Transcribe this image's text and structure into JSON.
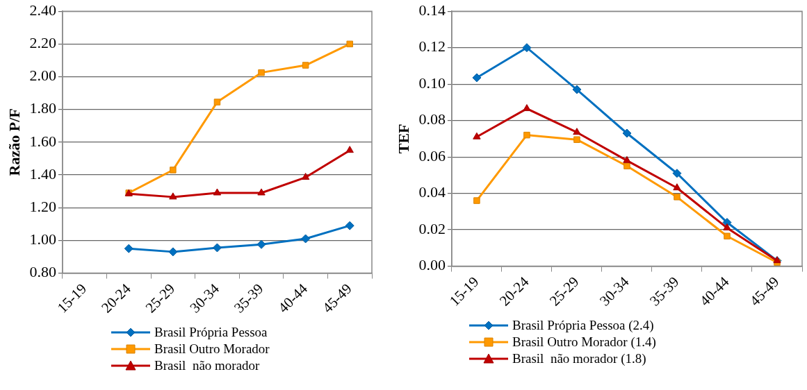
{
  "chart_data": [
    {
      "type": "line",
      "ylabel": "Razão P/F",
      "categories": [
        "15-19",
        "20-24",
        "25-29",
        "30-34",
        "35-39",
        "40-44",
        "45-49"
      ],
      "series": [
        {
          "name": "Brasil Própria Pessoa",
          "color": "#0070c0",
          "marker": "diamond",
          "values": [
            null,
            0.95,
            0.93,
            0.955,
            0.975,
            1.01,
            1.09
          ]
        },
        {
          "name": "Brasil Outro Morador",
          "color": "#ff9900",
          "marker": "square",
          "values": [
            null,
            1.29,
            1.43,
            1.845,
            2.025,
            2.07,
            2.2
          ]
        },
        {
          "name": "Brasil  não morador",
          "color": "#c00000",
          "marker": "triangle",
          "values": [
            null,
            1.285,
            1.265,
            1.29,
            1.29,
            1.385,
            1.55
          ]
        }
      ],
      "ylim": [
        0.8,
        2.4
      ],
      "yticks": [
        {
          "value": 0.8,
          "label": "0.80"
        },
        {
          "value": 1.0,
          "label": "1.00"
        },
        {
          "value": 1.2,
          "label": "1.20"
        },
        {
          "value": 1.4,
          "label": "1.40"
        },
        {
          "value": 1.6,
          "label": "1.60"
        },
        {
          "value": 1.8,
          "label": "1.80"
        },
        {
          "value": 2.0,
          "label": "2.00"
        },
        {
          "value": 2.2,
          "label": "2.20"
        },
        {
          "value": 2.4,
          "label": "2.40"
        }
      ],
      "grid": "y",
      "legend": "bottom",
      "line_style": "solid"
    },
    {
      "type": "line",
      "ylabel": "TEF",
      "categories": [
        "15-19",
        "20-24",
        "25-29",
        "30-34",
        "35-39",
        "40-44",
        "45-49"
      ],
      "series": [
        {
          "name": "Brasil Própria Pessoa (2.4)",
          "color": "#0070c0",
          "marker": "diamond",
          "values": [
            0.1035,
            0.12,
            0.097,
            0.073,
            0.051,
            0.024,
            0.003
          ]
        },
        {
          "name": "Brasil Outro Morador (1.4)",
          "color": "#ff9900",
          "marker": "square",
          "values": [
            0.036,
            0.072,
            0.0695,
            0.055,
            0.038,
            0.0165,
            0.002
          ]
        },
        {
          "name": "Brasil  não morador (1.8)",
          "color": "#c00000",
          "marker": "triangle",
          "values": [
            0.071,
            0.0865,
            0.0735,
            0.058,
            0.043,
            0.021,
            0.003
          ]
        }
      ],
      "ylim": [
        0,
        0.14
      ],
      "yticks": [
        {
          "value": 0,
          "label": "0.00"
        },
        {
          "value": 0.02,
          "label": "0.02"
        },
        {
          "value": 0.04,
          "label": "0.04"
        },
        {
          "value": 0.06,
          "label": "0.06"
        },
        {
          "value": 0.08,
          "label": "0.08"
        },
        {
          "value": 0.1,
          "label": "0.10"
        },
        {
          "value": 0.12,
          "label": "0.12"
        },
        {
          "value": 0.14,
          "label": "0.14"
        }
      ],
      "grid": "y",
      "legend": "bottom",
      "line_style": "solid"
    }
  ]
}
